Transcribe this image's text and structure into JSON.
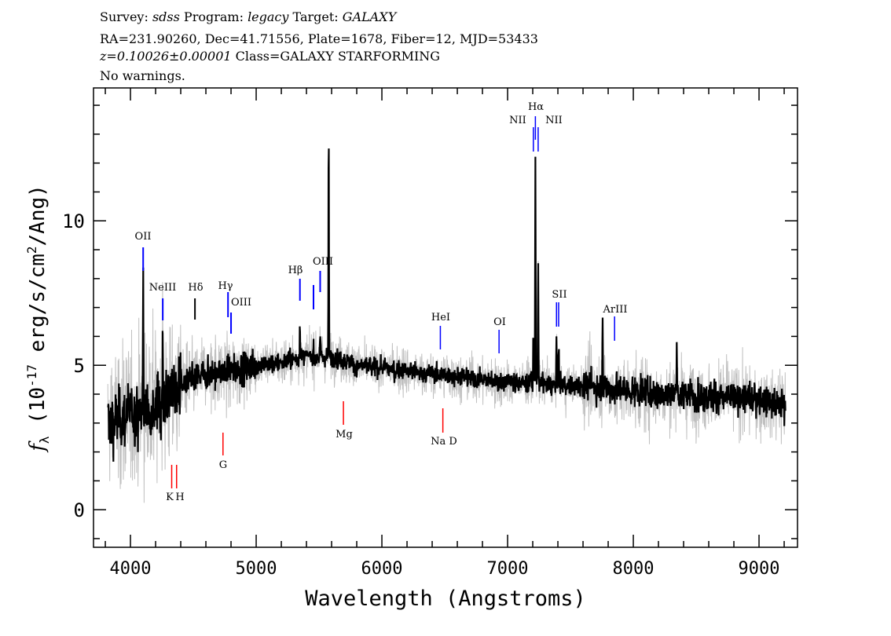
{
  "header": {
    "survey_label": "Survey:",
    "survey": "sdss",
    "program_label": "Program:",
    "program": "legacy",
    "target_label": "Target:",
    "target": "GALAXY",
    "line2": "RA=231.90260, Dec=41.71556, Plate=1678, Fiber=12, MJD=53433",
    "redshift": "z=0.10026±0.00001",
    "class": "Class=GALAXY STARFORMING",
    "warnings": "No warnings."
  },
  "chart_data": {
    "type": "line",
    "xlabel": "Wavelength (Angstroms)",
    "ylabel": "f_λ (10^-17 erg/s/cm^2/Ang)",
    "xlim": [
      3706,
      9306
    ],
    "ylim": [
      -1.3,
      14.6
    ],
    "xticks": [
      4000,
      5000,
      6000,
      7000,
      8000,
      9000
    ],
    "yticks": [
      0,
      5,
      10
    ],
    "grid": false,
    "series": [
      {
        "role": "smoothed flux",
        "color": "#000000",
        "continuum_x": [
          3820,
          4000,
          4200,
          4400,
          4600,
          4800,
          5000,
          5200,
          5400,
          5600,
          5800,
          6000,
          6200,
          6400,
          6600,
          6800,
          7000,
          7200,
          7400,
          7600,
          7800,
          8000,
          8200,
          8400,
          8600,
          8800,
          9000,
          9200
        ],
        "continuum_y": [
          3.0,
          3.3,
          3.6,
          4.3,
          4.7,
          4.8,
          5.0,
          5.1,
          5.3,
          5.3,
          5.0,
          4.9,
          4.8,
          4.7,
          4.6,
          4.5,
          4.4,
          4.4,
          4.3,
          4.3,
          4.2,
          4.1,
          4.0,
          4.0,
          3.9,
          3.9,
          3.8,
          3.6
        ],
        "peaks": [
          {
            "x": 4101,
            "y": 7.8
          },
          {
            "x": 4257,
            "y": 6.1
          },
          {
            "x": 5348,
            "y": 6.6
          },
          {
            "x": 5456,
            "y": 5.8
          },
          {
            "x": 5509,
            "y": 6.0
          },
          {
            "x": 5577,
            "y": 13.0
          },
          {
            "x": 7205,
            "y": 6.0
          },
          {
            "x": 7221,
            "y": 12.2
          },
          {
            "x": 7243,
            "y": 8.8
          },
          {
            "x": 7389,
            "y": 6.0
          },
          {
            "x": 7406,
            "y": 5.8
          },
          {
            "x": 7756,
            "y": 6.8
          },
          {
            "x": 8345,
            "y": 6.1
          }
        ]
      },
      {
        "role": "raw flux",
        "color": "#c0c0c0"
      }
    ],
    "line_markers": [
      {
        "label": "OII",
        "wavelength": 4101,
        "color": "#0000ff",
        "type": "emission"
      },
      {
        "label": "NeIII",
        "wavelength": 4257,
        "color": "#0000ff",
        "type": "emission"
      },
      {
        "label": "Hδ",
        "wavelength": 4513,
        "color": "#000000",
        "type": "emission"
      },
      {
        "label": "Hγ",
        "wavelength": 4776,
        "color": "#0000ff",
        "type": "emission"
      },
      {
        "label": "OIII",
        "wavelength": 4800,
        "color": "#0000ff",
        "type": "emission"
      },
      {
        "label": "Hβ",
        "wavelength": 5348,
        "color": "#0000ff",
        "type": "emission"
      },
      {
        "label": "",
        "wavelength": 5456,
        "color": "#0000ff",
        "type": "emission"
      },
      {
        "label": "OIII",
        "wavelength": 5509,
        "color": "#0000ff",
        "type": "emission"
      },
      {
        "label": "HeI",
        "wavelength": 6465,
        "color": "#0000ff",
        "type": "emission"
      },
      {
        "label": "OI",
        "wavelength": 6932,
        "color": "#0000ff",
        "type": "emission"
      },
      {
        "label": "NII",
        "wavelength": 7205,
        "color": "#0000ff",
        "type": "emission"
      },
      {
        "label": "Hα",
        "wavelength": 7221,
        "color": "#0000ff",
        "type": "emission"
      },
      {
        "label": "NII",
        "wavelength": 7243,
        "color": "#0000ff",
        "type": "emission"
      },
      {
        "label": "SII",
        "wavelength": 7389,
        "color": "#0000ff",
        "type": "emission"
      },
      {
        "label": "",
        "wavelength": 7406,
        "color": "#0000ff",
        "type": "emission"
      },
      {
        "label": "ArIII",
        "wavelength": 7851,
        "color": "#0000ff",
        "type": "emission"
      },
      {
        "label": "K",
        "wavelength": 4328,
        "color": "#ff0000",
        "type": "absorption"
      },
      {
        "label": "H",
        "wavelength": 4367,
        "color": "#ff0000",
        "type": "absorption"
      },
      {
        "label": "G",
        "wavelength": 4736,
        "color": "#ff0000",
        "type": "absorption"
      },
      {
        "label": "Mg",
        "wavelength": 5694,
        "color": "#ff0000",
        "type": "absorption"
      },
      {
        "label": "Na D",
        "wavelength": 6485,
        "color": "#ff0000",
        "type": "absorption"
      }
    ]
  }
}
